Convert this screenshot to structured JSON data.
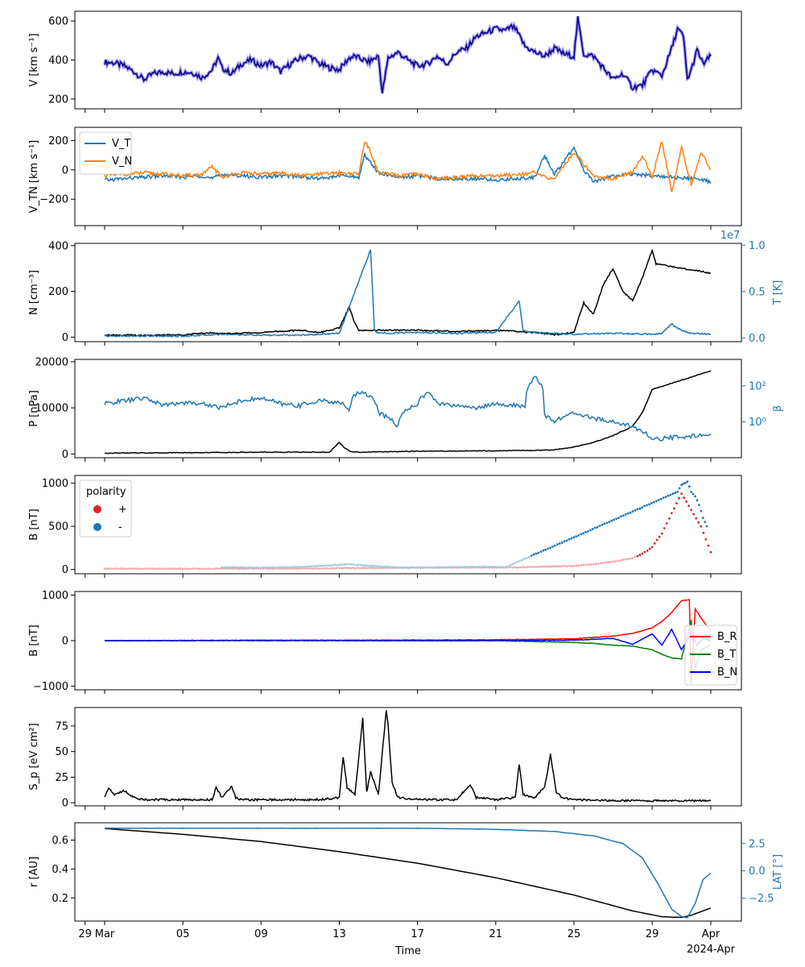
{
  "figure": {
    "x_axis_label": "Time",
    "x_ticks": [
      "29",
      "Mar",
      "05",
      "09",
      "13",
      "17",
      "21",
      "25",
      "29",
      "Apr"
    ],
    "x_tick_days": [
      -1,
      0,
      4,
      8,
      12,
      16,
      20,
      24,
      28,
      31
    ],
    "x_offset_label": "2024-Apr"
  },
  "chart_data": [
    {
      "type": "line",
      "ylabel": "V [km s⁻¹]",
      "ylim": [
        150,
        650
      ],
      "yticks": [
        200,
        400,
        600
      ],
      "series": [
        {
          "color": "#000080",
          "band_color": "#7b68ee",
          "x": [
            0,
            0.5,
            1,
            1.5,
            2,
            2.5,
            3,
            3.5,
            4,
            4.5,
            5,
            5.5,
            5.8,
            6,
            6.5,
            7,
            7.5,
            8,
            8.5,
            9,
            9.5,
            10,
            10.5,
            11,
            11.5,
            12,
            12.5,
            12.8,
            13,
            13.5,
            14,
            14.2,
            14.5,
            15,
            15.5,
            16,
            16.5,
            17,
            17.5,
            18,
            18.5,
            19,
            19.5,
            20,
            20.5,
            20.8,
            21,
            21.5,
            22,
            22.5,
            23,
            23.5,
            24,
            24.2,
            24.5,
            25,
            25.5,
            26,
            26.5,
            27,
            27.5,
            28,
            28.5,
            29,
            29.3,
            29.6,
            29.8,
            30,
            30.3,
            30.6,
            31
          ],
          "values": [
            390,
            385,
            370,
            340,
            300,
            330,
            340,
            330,
            340,
            335,
            310,
            350,
            410,
            360,
            330,
            380,
            400,
            370,
            390,
            340,
            380,
            410,
            420,
            380,
            360,
            350,
            410,
            420,
            410,
            390,
            420,
            230,
            410,
            440,
            400,
            370,
            380,
            420,
            380,
            440,
            460,
            520,
            540,
            560,
            550,
            570,
            560,
            470,
            440,
            420,
            460,
            430,
            420,
            610,
            430,
            420,
            360,
            300,
            330,
            260,
            270,
            350,
            320,
            460,
            560,
            520,
            300,
            350,
            450,
            380,
            420
          ]
        }
      ]
    },
    {
      "type": "line",
      "ylabel": "V_TN [km s⁻¹]",
      "ylim": [
        -380,
        290
      ],
      "yticks": [
        -200,
        0,
        200
      ],
      "legend_position": "upper-left",
      "series": [
        {
          "name": "V_T",
          "color": "#1f77b4",
          "x": [
            0,
            1,
            2,
            3,
            4,
            5,
            5.5,
            6,
            7,
            8,
            9,
            10,
            11,
            12,
            13,
            13.3,
            13.6,
            14,
            15,
            16,
            17,
            18,
            19,
            20,
            21,
            22,
            22.5,
            23,
            24,
            24.5,
            25,
            26,
            27,
            28,
            29,
            30,
            31
          ],
          "values": [
            -70,
            -60,
            -50,
            -40,
            -50,
            -40,
            -60,
            -30,
            -40,
            -50,
            -40,
            -45,
            -60,
            -40,
            -50,
            100,
            50,
            -20,
            -50,
            -40,
            -60,
            -60,
            -60,
            -70,
            -60,
            -50,
            100,
            -30,
            150,
            0,
            -80,
            -40,
            -30,
            -40,
            -50,
            -60,
            -80
          ]
        },
        {
          "name": "V_N",
          "color": "#ff7f0e",
          "x": [
            0,
            1,
            2,
            3,
            4,
            5,
            5.5,
            6,
            7,
            8,
            9,
            10,
            11,
            12,
            13,
            13.3,
            13.6,
            14,
            15,
            16,
            17,
            18,
            19,
            20,
            21,
            22,
            22.5,
            23,
            24,
            25,
            26,
            27,
            27.5,
            28,
            28.5,
            29,
            29.5,
            30,
            30.5,
            31
          ],
          "values": [
            -40,
            -30,
            -20,
            -30,
            -40,
            -30,
            20,
            -50,
            -20,
            -30,
            -20,
            -40,
            -30,
            -20,
            -30,
            200,
            120,
            -20,
            -40,
            -30,
            -60,
            -50,
            -40,
            -40,
            -30,
            -20,
            -50,
            -60,
            120,
            -40,
            -60,
            -20,
            100,
            -50,
            200,
            -150,
            150,
            -100,
            120,
            0
          ]
        }
      ]
    },
    {
      "type": "line",
      "ylabel": "N [cm⁻³]",
      "ylim": [
        -20,
        410
      ],
      "yticks": [
        0,
        200,
        400
      ],
      "y2label": "T [K]",
      "y2lim": [
        -0.04,
        1.02
      ],
      "y2ticks": [
        0.0,
        0.5,
        1.0
      ],
      "y2_offset_label": "1e7",
      "series": [
        {
          "color": "#000000",
          "axis": "left",
          "x": [
            0,
            2,
            4,
            5.5,
            6,
            8,
            10,
            11,
            12,
            12.5,
            12.8,
            13,
            14,
            16,
            18,
            20,
            22,
            23,
            24,
            24.5,
            25,
            25.5,
            26,
            26.5,
            27,
            27.5,
            28,
            28.2,
            31
          ],
          "values": [
            10,
            8,
            10,
            20,
            15,
            20,
            30,
            20,
            40,
            130,
            60,
            30,
            30,
            30,
            25,
            30,
            20,
            10,
            20,
            150,
            100,
            230,
            300,
            200,
            160,
            260,
            380,
            320,
            280
          ]
        },
        {
          "color": "#1f77b4",
          "axis": "right",
          "x": [
            0,
            2,
            4,
            6,
            8,
            10,
            12,
            13.6,
            13.8,
            14,
            16,
            18,
            20,
            21.2,
            21.4,
            22,
            24,
            26,
            28,
            28.5,
            29,
            29.5,
            30,
            31
          ],
          "values": [
            0.02,
            0.02,
            0.02,
            0.04,
            0.03,
            0.03,
            0.05,
            0.95,
            0.08,
            0.05,
            0.06,
            0.05,
            0.06,
            0.4,
            0.08,
            0.06,
            0.04,
            0.05,
            0.04,
            0.05,
            0.15,
            0.08,
            0.05,
            0.04
          ]
        }
      ]
    },
    {
      "type": "line",
      "ylabel": "P [nPa]",
      "ylim": [
        -800,
        20500
      ],
      "yticks": [
        0,
        10000,
        20000
      ],
      "y2label": "β",
      "y2_scale": "log",
      "y2lim": [
        0.01,
        3000
      ],
      "y2ticks": [
        "10⁰",
        "10²"
      ],
      "y2tick_values": [
        1,
        100
      ],
      "series": [
        {
          "color": "#000000",
          "axis": "left",
          "x": [
            0,
            4,
            8,
            11.5,
            12,
            12.3,
            12.6,
            13,
            16,
            20,
            22,
            23,
            24,
            25,
            26,
            27,
            27.5,
            28,
            31
          ],
          "values": [
            200,
            300,
            400,
            400,
            2500,
            1200,
            500,
            400,
            600,
            700,
            800,
            900,
            1500,
            2500,
            4000,
            6000,
            9000,
            14000,
            18000
          ]
        },
        {
          "color": "#1f77b4",
          "axis": "right",
          "x": [
            0,
            1,
            2,
            3,
            4,
            5,
            6,
            7,
            8,
            9,
            10,
            11,
            12,
            12.5,
            13,
            13.5,
            14,
            15,
            16,
            16.5,
            17,
            18,
            19,
            20,
            21,
            21.5,
            22,
            22.5,
            23,
            24,
            25,
            26,
            27,
            28,
            31
          ],
          "values": [
            10,
            15,
            20,
            8,
            12,
            10,
            6,
            15,
            20,
            10,
            8,
            15,
            12,
            4,
            50,
            30,
            3,
            0.5,
            10,
            40,
            10,
            8,
            6,
            10,
            8,
            6,
            300,
            2,
            1,
            3,
            1.5,
            1,
            0.5,
            0.1,
            0.2
          ]
        }
      ]
    },
    {
      "type": "scatter",
      "ylabel": "B [nT]",
      "ylim": [
        -50,
        1090
      ],
      "yticks": [
        0,
        500,
        1000
      ],
      "legend_title": "polarity",
      "legend_position": "upper-left",
      "series": [
        {
          "name": "+",
          "color": "#d62728",
          "fade_color": "#f2a7a8",
          "x": [
            0,
            2,
            4,
            11,
            12,
            14,
            21,
            22,
            24,
            25,
            26,
            27,
            27.5,
            28,
            28.5,
            29,
            29.5,
            30.5,
            31
          ],
          "values": [
            8,
            8,
            8,
            10,
            15,
            18,
            25,
            30,
            40,
            60,
            90,
            130,
            180,
            260,
            420,
            650,
            880,
            500,
            200
          ]
        },
        {
          "name": "-",
          "color": "#1f77b4",
          "fade_color": "#9ecae1",
          "x": [
            6,
            8,
            10,
            12.5,
            15,
            17,
            19,
            20,
            20.5,
            29.3,
            29.5,
            29.8,
            30,
            30.2,
            30.4,
            30.6,
            30.8
          ],
          "values": [
            25,
            20,
            28,
            60,
            20,
            25,
            30,
            28,
            25,
            900,
            980,
            1020,
            900,
            850,
            750,
            600,
            500
          ]
        }
      ]
    },
    {
      "type": "line",
      "ylabel": "B [nT]",
      "ylim": [
        -1080,
        1080
      ],
      "yticks": [
        -1000,
        0,
        1000
      ],
      "legend_position": "lower-right",
      "series": [
        {
          "name": "B_R",
          "color": "#ff0000",
          "x": [
            0,
            4,
            8,
            12,
            16,
            20,
            22,
            24,
            25,
            26,
            27,
            28,
            28.5,
            29,
            29.5,
            29.9,
            30,
            30.2,
            30.5,
            31
          ],
          "values": [
            0,
            5,
            8,
            10,
            15,
            20,
            30,
            40,
            70,
            100,
            160,
            280,
            420,
            620,
            880,
            900,
            -950,
            700,
            500,
            200
          ]
        },
        {
          "name": "B_T",
          "color": "#008000",
          "x": [
            0,
            4,
            8,
            12,
            16,
            20,
            22,
            24,
            25,
            26,
            27,
            28,
            28.5,
            29,
            29.5,
            30,
            30.2,
            30.5,
            31
          ],
          "values": [
            0,
            0,
            10,
            5,
            0,
            0,
            -20,
            -40,
            -60,
            -100,
            -120,
            -200,
            -300,
            -380,
            -400,
            450,
            -600,
            -200,
            -100
          ]
        },
        {
          "name": "B_N",
          "color": "#0000ff",
          "x": [
            0,
            4,
            8,
            12,
            16,
            20,
            22,
            24,
            25,
            26,
            27,
            28,
            28.5,
            29,
            29.5,
            30,
            30.3,
            30.6,
            31
          ],
          "values": [
            0,
            0,
            0,
            0,
            0,
            0,
            5,
            10,
            30,
            50,
            -80,
            150,
            -100,
            250,
            -200,
            150,
            -100,
            50,
            0
          ]
        }
      ]
    },
    {
      "type": "line",
      "ylabel": "S_p [eV cm²]",
      "ylim": [
        -3,
        93
      ],
      "yticks": [
        0,
        25,
        50,
        75
      ],
      "series": [
        {
          "color": "#000000",
          "x": [
            0,
            0.2,
            0.5,
            1,
            1.5,
            2,
            4,
            5.5,
            5.7,
            6,
            6.5,
            6.7,
            7,
            9,
            11,
            12,
            12.2,
            12.4,
            12.8,
            13.2,
            13.4,
            13.6,
            14,
            14.4,
            14.5,
            14.7,
            15,
            16,
            18,
            18.7,
            19,
            20,
            21,
            21.2,
            21.4,
            22,
            22.5,
            22.8,
            23.1,
            23.4,
            24,
            26,
            28,
            30,
            31
          ],
          "values": [
            6,
            15,
            8,
            12,
            5,
            3,
            3,
            3,
            15,
            5,
            16,
            5,
            3,
            3,
            3,
            5,
            45,
            15,
            8,
            83,
            10,
            30,
            8,
            90,
            75,
            20,
            5,
            3,
            3,
            18,
            5,
            3,
            5,
            38,
            8,
            5,
            15,
            47,
            10,
            5,
            3,
            2,
            2,
            2,
            2
          ]
        }
      ]
    },
    {
      "type": "line",
      "ylabel": "r [AU]",
      "ylim": [
        0.04,
        0.72
      ],
      "yticks": [
        0.2,
        0.4,
        0.6
      ],
      "y2label": "LAT [°]",
      "y2lim": [
        -4.6,
        4.4
      ],
      "y2ticks": [
        -2.5,
        0.0,
        2.5
      ],
      "series": [
        {
          "color": "#000000",
          "axis": "left",
          "x": [
            0,
            4,
            8,
            12,
            16,
            20,
            24,
            27,
            28.5,
            29.5,
            30,
            31
          ],
          "values": [
            0.68,
            0.64,
            0.59,
            0.52,
            0.44,
            0.34,
            0.22,
            0.11,
            0.07,
            0.065,
            0.08,
            0.13
          ]
        },
        {
          "color": "#1f77b4",
          "axis": "right",
          "x": [
            0,
            8,
            16,
            20,
            23,
            25,
            26.5,
            27.5,
            28.3,
            29,
            29.5,
            29.8,
            30.2,
            30.6,
            31
          ],
          "values": [
            3.9,
            3.9,
            3.9,
            3.8,
            3.6,
            3.2,
            2.5,
            1.2,
            -1.2,
            -3.5,
            -4.2,
            -4.3,
            -3.0,
            -0.8,
            -0.2
          ]
        }
      ]
    }
  ]
}
